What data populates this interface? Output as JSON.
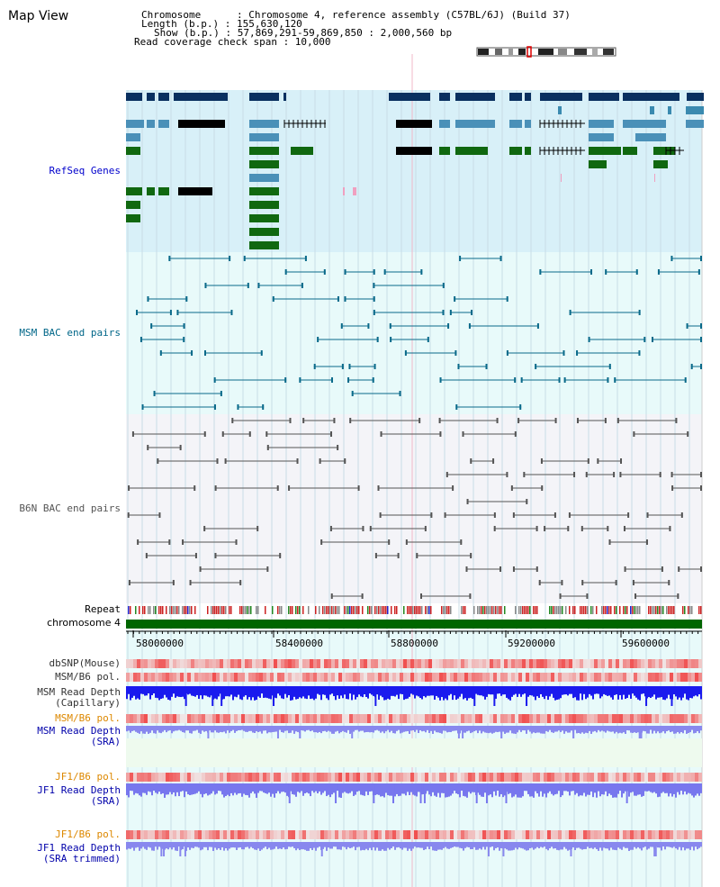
{
  "title": "Map View",
  "info": {
    "lines": [
      "Chromosome      : Chromosome 4, reference assembly (C57BL/6J) (Build 37)",
      "Length (b.p.) : 155,630,120",
      "Show (b.p.) : 57,869,291-59,869,850 : 2,000,560 bp",
      "Read coverage check span : 10,000"
    ]
  },
  "tracks": {
    "refseq": "RefSeq Genes",
    "msm_bac": "MSM BAC end pairs",
    "b6n_bac": "B6N BAC end pairs",
    "repeat": "Repeat",
    "chromosome": "chromosome 4",
    "dbsnp": "dbSNP(Mouse)",
    "msm_b6_pol": "MSM/B6 pol.",
    "msm_depth_cap": "MSM Read Depth",
    "msm_depth_cap_sub": "(Capillary)",
    "msm_b6_pol_sra": "MSM/B6 pol.",
    "msm_depth_sra": "MSM Read Depth",
    "msm_depth_sra_sub": "(SRA)",
    "jf1_b6_pol": "JF1/B6 pol.",
    "jf1_depth_sra": "JF1 Read Depth",
    "jf1_depth_sra_sub": "(SRA)",
    "jf1_b6_pol_trim": "JF1/B6 pol.",
    "jf1_depth_trim": "JF1 Read Depth",
    "jf1_depth_trim_sub": "(SRA trimmed)"
  },
  "axis": {
    "ticks": [
      "58000000",
      "58400000",
      "58800000",
      "59200000",
      "59600000"
    ]
  },
  "colors": {
    "refseq_label": "#0000cc",
    "msm_label": "#006688",
    "b6n_label": "#555555",
    "orange_label": "#dd8800",
    "blue_label": "#0000aa",
    "refseq_bg": "#d8f0f8",
    "msm_bg": "#e8fafa",
    "b6n_bg": "#f4f4f8",
    "chromosome": "#006600"
  }
}
